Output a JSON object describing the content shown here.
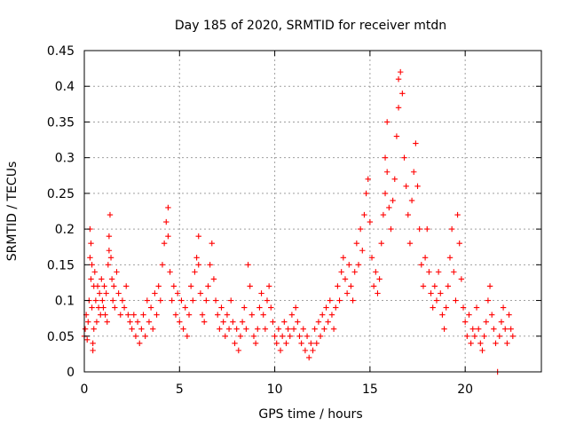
{
  "chart_data": {
    "type": "scatter",
    "title": "Day 185 of 2020, SRMTID for receiver mtdn",
    "xlabel": "GPS time / hours",
    "ylabel": "SRMTID / TECUs",
    "xlim": [
      0,
      24
    ],
    "ylim": [
      0,
      0.45
    ],
    "xticks": [
      0,
      5,
      10,
      15,
      20
    ],
    "yticks": [
      0,
      0.05,
      0.1,
      0.15,
      0.2,
      0.25,
      0.3,
      0.35,
      0.4,
      0.45
    ],
    "x_tick_labels": [
      "0",
      "5",
      "10",
      "15",
      "20"
    ],
    "y_tick_labels": [
      "0",
      "0.05",
      "0.1",
      "0.15",
      "0.2",
      "0.25",
      "0.3",
      "0.35",
      "0.4",
      "0.45"
    ],
    "grid": true,
    "marker": "+",
    "color": "#ff0000",
    "series": [
      {
        "name": "SRMTID",
        "points": [
          [
            0.0,
            0.05
          ],
          [
            0.05,
            0.06
          ],
          [
            0.1,
            0.08
          ],
          [
            0.15,
            0.045
          ],
          [
            0.2,
            0.07
          ],
          [
            0.25,
            0.1
          ],
          [
            0.3,
            0.16
          ],
          [
            0.3,
            0.2
          ],
          [
            0.35,
            0.13
          ],
          [
            0.35,
            0.18
          ],
          [
            0.4,
            0.09
          ],
          [
            0.4,
            0.15
          ],
          [
            0.45,
            0.04
          ],
          [
            0.45,
            0.03
          ],
          [
            0.5,
            0.12
          ],
          [
            0.5,
            0.06
          ],
          [
            0.55,
            0.14
          ],
          [
            0.6,
            0.1
          ],
          [
            0.65,
            0.07
          ],
          [
            0.7,
            0.12
          ],
          [
            0.75,
            0.09
          ],
          [
            0.8,
            0.11
          ],
          [
            0.85,
            0.08
          ],
          [
            0.9,
            0.13
          ],
          [
            0.95,
            0.1
          ],
          [
            1.0,
            0.09
          ],
          [
            1.05,
            0.12
          ],
          [
            1.1,
            0.08
          ],
          [
            1.15,
            0.11
          ],
          [
            1.2,
            0.07
          ],
          [
            1.25,
            0.15
          ],
          [
            1.3,
            0.17
          ],
          [
            1.3,
            0.19
          ],
          [
            1.35,
            0.22
          ],
          [
            1.4,
            0.16
          ],
          [
            1.45,
            0.13
          ],
          [
            1.5,
            0.1
          ],
          [
            1.55,
            0.12
          ],
          [
            1.6,
            0.09
          ],
          [
            1.7,
            0.14
          ],
          [
            1.8,
            0.11
          ],
          [
            1.9,
            0.08
          ],
          [
            2.0,
            0.1
          ],
          [
            2.1,
            0.09
          ],
          [
            2.2,
            0.12
          ],
          [
            2.3,
            0.08
          ],
          [
            2.4,
            0.07
          ],
          [
            2.5,
            0.06
          ],
          [
            2.6,
            0.08
          ],
          [
            2.7,
            0.05
          ],
          [
            2.8,
            0.07
          ],
          [
            2.9,
            0.04
          ],
          [
            3.0,
            0.06
          ],
          [
            3.1,
            0.08
          ],
          [
            3.2,
            0.05
          ],
          [
            3.3,
            0.1
          ],
          [
            3.4,
            0.07
          ],
          [
            3.5,
            0.09
          ],
          [
            3.6,
            0.06
          ],
          [
            3.7,
            0.11
          ],
          [
            3.8,
            0.08
          ],
          [
            3.9,
            0.12
          ],
          [
            4.0,
            0.1
          ],
          [
            4.1,
            0.15
          ],
          [
            4.2,
            0.18
          ],
          [
            4.3,
            0.21
          ],
          [
            4.4,
            0.23
          ],
          [
            4.4,
            0.19
          ],
          [
            4.5,
            0.14
          ],
          [
            4.6,
            0.1
          ],
          [
            4.7,
            0.12
          ],
          [
            4.8,
            0.08
          ],
          [
            4.9,
            0.11
          ],
          [
            5.0,
            0.07
          ],
          [
            5.1,
            0.1
          ],
          [
            5.2,
            0.06
          ],
          [
            5.3,
            0.09
          ],
          [
            5.4,
            0.05
          ],
          [
            5.5,
            0.08
          ],
          [
            5.6,
            0.12
          ],
          [
            5.7,
            0.1
          ],
          [
            5.8,
            0.14
          ],
          [
            5.9,
            0.16
          ],
          [
            6.0,
            0.19
          ],
          [
            6.0,
            0.15
          ],
          [
            6.1,
            0.11
          ],
          [
            6.2,
            0.08
          ],
          [
            6.3,
            0.07
          ],
          [
            6.4,
            0.1
          ],
          [
            6.5,
            0.12
          ],
          [
            6.6,
            0.15
          ],
          [
            6.7,
            0.18
          ],
          [
            6.8,
            0.13
          ],
          [
            6.9,
            0.1
          ],
          [
            7.0,
            0.08
          ],
          [
            7.1,
            0.06
          ],
          [
            7.2,
            0.09
          ],
          [
            7.3,
            0.07
          ],
          [
            7.4,
            0.05
          ],
          [
            7.5,
            0.08
          ],
          [
            7.6,
            0.06
          ],
          [
            7.7,
            0.1
          ],
          [
            7.8,
            0.07
          ],
          [
            7.9,
            0.04
          ],
          [
            8.0,
            0.06
          ],
          [
            8.1,
            0.03
          ],
          [
            8.2,
            0.05
          ],
          [
            8.3,
            0.07
          ],
          [
            8.4,
            0.09
          ],
          [
            8.5,
            0.06
          ],
          [
            8.6,
            0.15
          ],
          [
            8.7,
            0.12
          ],
          [
            8.8,
            0.08
          ],
          [
            8.9,
            0.05
          ],
          [
            9.0,
            0.04
          ],
          [
            9.1,
            0.06
          ],
          [
            9.2,
            0.09
          ],
          [
            9.3,
            0.11
          ],
          [
            9.4,
            0.08
          ],
          [
            9.5,
            0.06
          ],
          [
            9.6,
            0.1
          ],
          [
            9.7,
            0.12
          ],
          [
            9.8,
            0.09
          ],
          [
            9.9,
            0.07
          ],
          [
            10.0,
            0.05
          ],
          [
            10.1,
            0.04
          ],
          [
            10.2,
            0.06
          ],
          [
            10.3,
            0.03
          ],
          [
            10.4,
            0.05
          ],
          [
            10.5,
            0.07
          ],
          [
            10.6,
            0.04
          ],
          [
            10.7,
            0.06
          ],
          [
            10.8,
            0.05
          ],
          [
            10.9,
            0.08
          ],
          [
            11.0,
            0.06
          ],
          [
            11.1,
            0.09
          ],
          [
            11.2,
            0.07
          ],
          [
            11.3,
            0.05
          ],
          [
            11.4,
            0.04
          ],
          [
            11.5,
            0.06
          ],
          [
            11.6,
            0.03
          ],
          [
            11.7,
            0.05
          ],
          [
            11.8,
            0.02
          ],
          [
            11.9,
            0.04
          ],
          [
            12.0,
            0.03
          ],
          [
            12.1,
            0.06
          ],
          [
            12.2,
            0.04
          ],
          [
            12.3,
            0.07
          ],
          [
            12.4,
            0.05
          ],
          [
            12.5,
            0.08
          ],
          [
            12.6,
            0.06
          ],
          [
            12.7,
            0.09
          ],
          [
            12.8,
            0.07
          ],
          [
            12.9,
            0.1
          ],
          [
            13.0,
            0.08
          ],
          [
            13.1,
            0.06
          ],
          [
            13.2,
            0.09
          ],
          [
            13.3,
            0.12
          ],
          [
            13.4,
            0.1
          ],
          [
            13.5,
            0.14
          ],
          [
            13.6,
            0.16
          ],
          [
            13.7,
            0.13
          ],
          [
            13.8,
            0.11
          ],
          [
            13.9,
            0.15
          ],
          [
            14.0,
            0.12
          ],
          [
            14.1,
            0.1
          ],
          [
            14.2,
            0.14
          ],
          [
            14.3,
            0.18
          ],
          [
            14.4,
            0.15
          ],
          [
            14.5,
            0.2
          ],
          [
            14.6,
            0.17
          ],
          [
            14.7,
            0.22
          ],
          [
            14.8,
            0.25
          ],
          [
            14.9,
            0.27
          ],
          [
            15.0,
            0.21
          ],
          [
            15.1,
            0.16
          ],
          [
            15.2,
            0.12
          ],
          [
            15.3,
            0.14
          ],
          [
            15.4,
            0.11
          ],
          [
            15.5,
            0.13
          ],
          [
            15.6,
            0.18
          ],
          [
            15.7,
            0.22
          ],
          [
            15.8,
            0.25
          ],
          [
            15.8,
            0.3
          ],
          [
            15.9,
            0.35
          ],
          [
            15.9,
            0.28
          ],
          [
            16.0,
            0.23
          ],
          [
            16.1,
            0.2
          ],
          [
            16.2,
            0.24
          ],
          [
            16.3,
            0.27
          ],
          [
            16.4,
            0.33
          ],
          [
            16.5,
            0.37
          ],
          [
            16.5,
            0.41
          ],
          [
            16.6,
            0.42
          ],
          [
            16.7,
            0.39
          ],
          [
            16.8,
            0.3
          ],
          [
            16.9,
            0.26
          ],
          [
            17.0,
            0.22
          ],
          [
            17.1,
            0.18
          ],
          [
            17.2,
            0.24
          ],
          [
            17.3,
            0.28
          ],
          [
            17.4,
            0.32
          ],
          [
            17.5,
            0.26
          ],
          [
            17.6,
            0.2
          ],
          [
            17.7,
            0.15
          ],
          [
            17.8,
            0.12
          ],
          [
            17.9,
            0.16
          ],
          [
            18.0,
            0.2
          ],
          [
            18.1,
            0.14
          ],
          [
            18.2,
            0.11
          ],
          [
            18.3,
            0.09
          ],
          [
            18.4,
            0.12
          ],
          [
            18.5,
            0.1
          ],
          [
            18.6,
            0.14
          ],
          [
            18.7,
            0.11
          ],
          [
            18.8,
            0.08
          ],
          [
            18.9,
            0.06
          ],
          [
            19.0,
            0.09
          ],
          [
            19.1,
            0.12
          ],
          [
            19.2,
            0.16
          ],
          [
            19.3,
            0.2
          ],
          [
            19.4,
            0.14
          ],
          [
            19.5,
            0.1
          ],
          [
            19.6,
            0.22
          ],
          [
            19.7,
            0.18
          ],
          [
            19.8,
            0.13
          ],
          [
            19.9,
            0.09
          ],
          [
            20.0,
            0.07
          ],
          [
            20.1,
            0.05
          ],
          [
            20.2,
            0.08
          ],
          [
            20.3,
            0.04
          ],
          [
            20.4,
            0.06
          ],
          [
            20.5,
            0.05
          ],
          [
            20.6,
            0.09
          ],
          [
            20.7,
            0.06
          ],
          [
            20.8,
            0.04
          ],
          [
            20.9,
            0.03
          ],
          [
            21.0,
            0.05
          ],
          [
            21.1,
            0.07
          ],
          [
            21.2,
            0.1
          ],
          [
            21.3,
            0.12
          ],
          [
            21.4,
            0.08
          ],
          [
            21.5,
            0.06
          ],
          [
            21.6,
            0.04
          ],
          [
            21.7,
            0.0
          ],
          [
            21.8,
            0.05
          ],
          [
            21.9,
            0.07
          ],
          [
            22.0,
            0.09
          ],
          [
            22.1,
            0.06
          ],
          [
            22.2,
            0.04
          ],
          [
            22.3,
            0.08
          ],
          [
            22.4,
            0.06
          ],
          [
            22.5,
            0.05
          ]
        ]
      }
    ]
  }
}
